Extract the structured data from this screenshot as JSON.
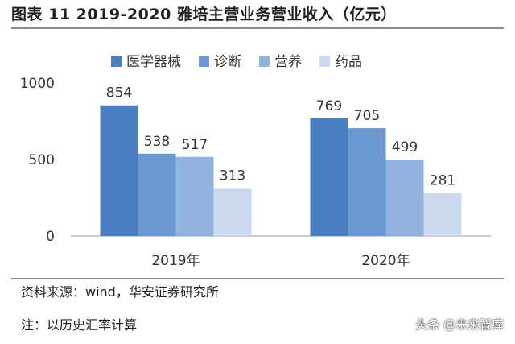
{
  "header": {
    "title": "图表 11 2019-2020 雅培主营业务营业收入（亿元）"
  },
  "chart_data": {
    "type": "bar",
    "categories": [
      "2019年",
      "2020年"
    ],
    "series": [
      {
        "name": "医学器械",
        "values": [
          854,
          769
        ],
        "color": "#4a7fc1"
      },
      {
        "name": "诊断",
        "values": [
          538,
          705
        ],
        "color": "#6b98d0"
      },
      {
        "name": "营养",
        "values": [
          517,
          499
        ],
        "color": "#92b3dd"
      },
      {
        "name": "药品",
        "values": [
          313,
          281
        ],
        "color": "#cad9ee"
      }
    ],
    "ylim": [
      0,
      1000
    ],
    "yticks": [
      0,
      500,
      1000
    ],
    "grid": false,
    "legend": "top",
    "data_labels": true
  },
  "footer": {
    "source": "资料来源：wind，华安证券研究所",
    "note": "注：以历史汇率计算",
    "watermark": "头条 @未来智库"
  }
}
